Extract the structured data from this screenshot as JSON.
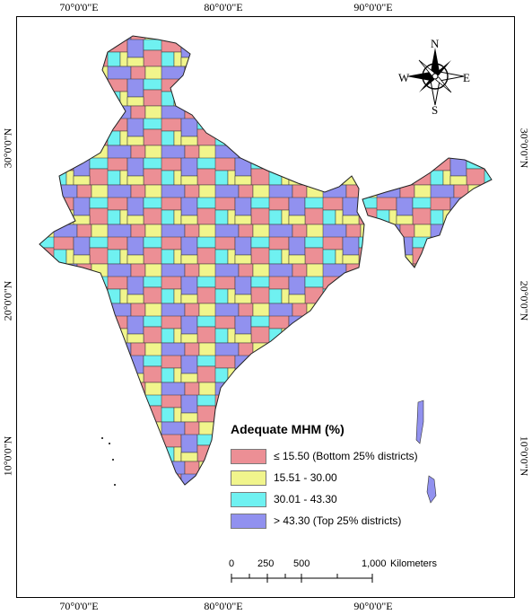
{
  "map": {
    "legend": {
      "title": "Adequate MHM (%)",
      "classes": [
        {
          "label": "≤ 15.50 (Bottom 25% districts)",
          "color": "#ec8f95"
        },
        {
          "label": "15.51 - 30.00",
          "color": "#f1f58c"
        },
        {
          "label": "30.01 - 43.30",
          "color": "#6ff1f1"
        },
        {
          "label": "> 43.30 (Top 25% districts)",
          "color": "#9191ef"
        }
      ]
    },
    "graticule": {
      "top": [
        "70°0'0\"E",
        "80°0'0\"E",
        "90°0'0\"E"
      ],
      "bottom": [
        "70°0'0\"E",
        "80°0'0\"E",
        "90°0'0\"E"
      ],
      "left": [
        "30°0'0\"N",
        "20°0'0\"N",
        "10°0'0\"N"
      ],
      "right": [
        "30°0'0\"N",
        "20°0'0\"N",
        "10°0'0\"N"
      ]
    },
    "scale_bar": {
      "ticks": [
        "0",
        "250",
        "500",
        "1,000"
      ],
      "unit": "Kilometers"
    },
    "north_arrow": {
      "n": "N",
      "e": "E",
      "s": "S",
      "w": "W"
    },
    "colors": {
      "pink": "#ec8f95",
      "yellow": "#f1f58c",
      "cyan": "#6ff1f1",
      "blue": "#9191ef",
      "boundary": "#333333"
    }
  }
}
